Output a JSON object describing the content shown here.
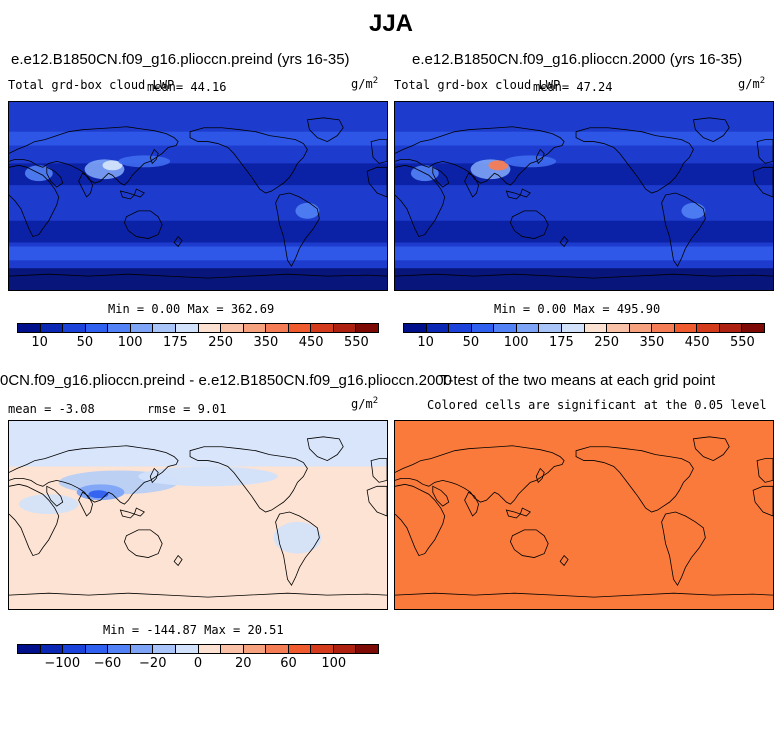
{
  "title": "JJA",
  "panels": {
    "top_left": {
      "title": "e.e12.B1850CN.f09_g16.plioccn.preind (yrs 16-35)",
      "variable": "Total grd-box cloud LWP",
      "mean_label": "mean=  44.16",
      "units": "g/m",
      "units_exp": "2",
      "minmax": "Min =    0.00 Max = 362.69",
      "colors": [
        "#000f8a",
        "#0a28b4",
        "#1b43d9",
        "#2f60ef",
        "#5282f5",
        "#7ea4f7",
        "#a9c4f9",
        "#d2e2fb",
        "#fbe1d2",
        "#f9c2a8",
        "#f7a27e",
        "#f47d55",
        "#ef5a2f",
        "#d33b1c",
        "#ae2010",
        "#7d0a05"
      ],
      "ticks": [
        "10",
        "50",
        "100",
        "175",
        "250",
        "350",
        "450",
        "550"
      ],
      "field_mean": 44.16
    },
    "top_right": {
      "title": "e.e12.B1850CN.f09_g16.plioccn.2000 (yrs 16-35)",
      "variable": "Total grd-box cloud LWP",
      "mean_label": "mean=  47.24",
      "units": "g/m",
      "units_exp": "2",
      "minmax": "Min =    0.00 Max = 495.90",
      "ticks": [
        "10",
        "50",
        "100",
        "175",
        "250",
        "350",
        "450",
        "550"
      ],
      "field_mean": 47.24
    },
    "bottom_left": {
      "title": "0CN.f09_g16.plioccn.preind - e.e12.B1850CN.f09_g16.plioccn.2000",
      "mean_label": "mean =   -3.08",
      "rmse_label": "rmse =   9.01",
      "units": "g/m",
      "units_exp": "2",
      "minmax": "Min = -144.87 Max =  20.51",
      "colors": [
        "#000f8a",
        "#0a28b4",
        "#1b43d9",
        "#2f60ef",
        "#5282f5",
        "#7ea4f7",
        "#a9c4f9",
        "#d2e2fb",
        "#fbe1d2",
        "#f9c2a8",
        "#f7a27e",
        "#f47d55",
        "#ef5a2f",
        "#d33b1c",
        "#ae2010",
        "#7d0a05"
      ],
      "ticks": [
        "−100",
        "−60",
        "−20",
        "0",
        "20",
        "60",
        "100"
      ]
    },
    "bottom_right": {
      "title": "T-test of the two means at each grid point",
      "subtitle": "Colored cells are significant at the 0.05 level",
      "fill_color": "#fa7a3c"
    }
  },
  "colors": {
    "ocean_low": "#1f3fcf",
    "ocean_dark": "#0a1e9a",
    "diff_background": "#fde3d3",
    "diff_light_blue": "#c9dbf7",
    "coast": "#000000"
  }
}
